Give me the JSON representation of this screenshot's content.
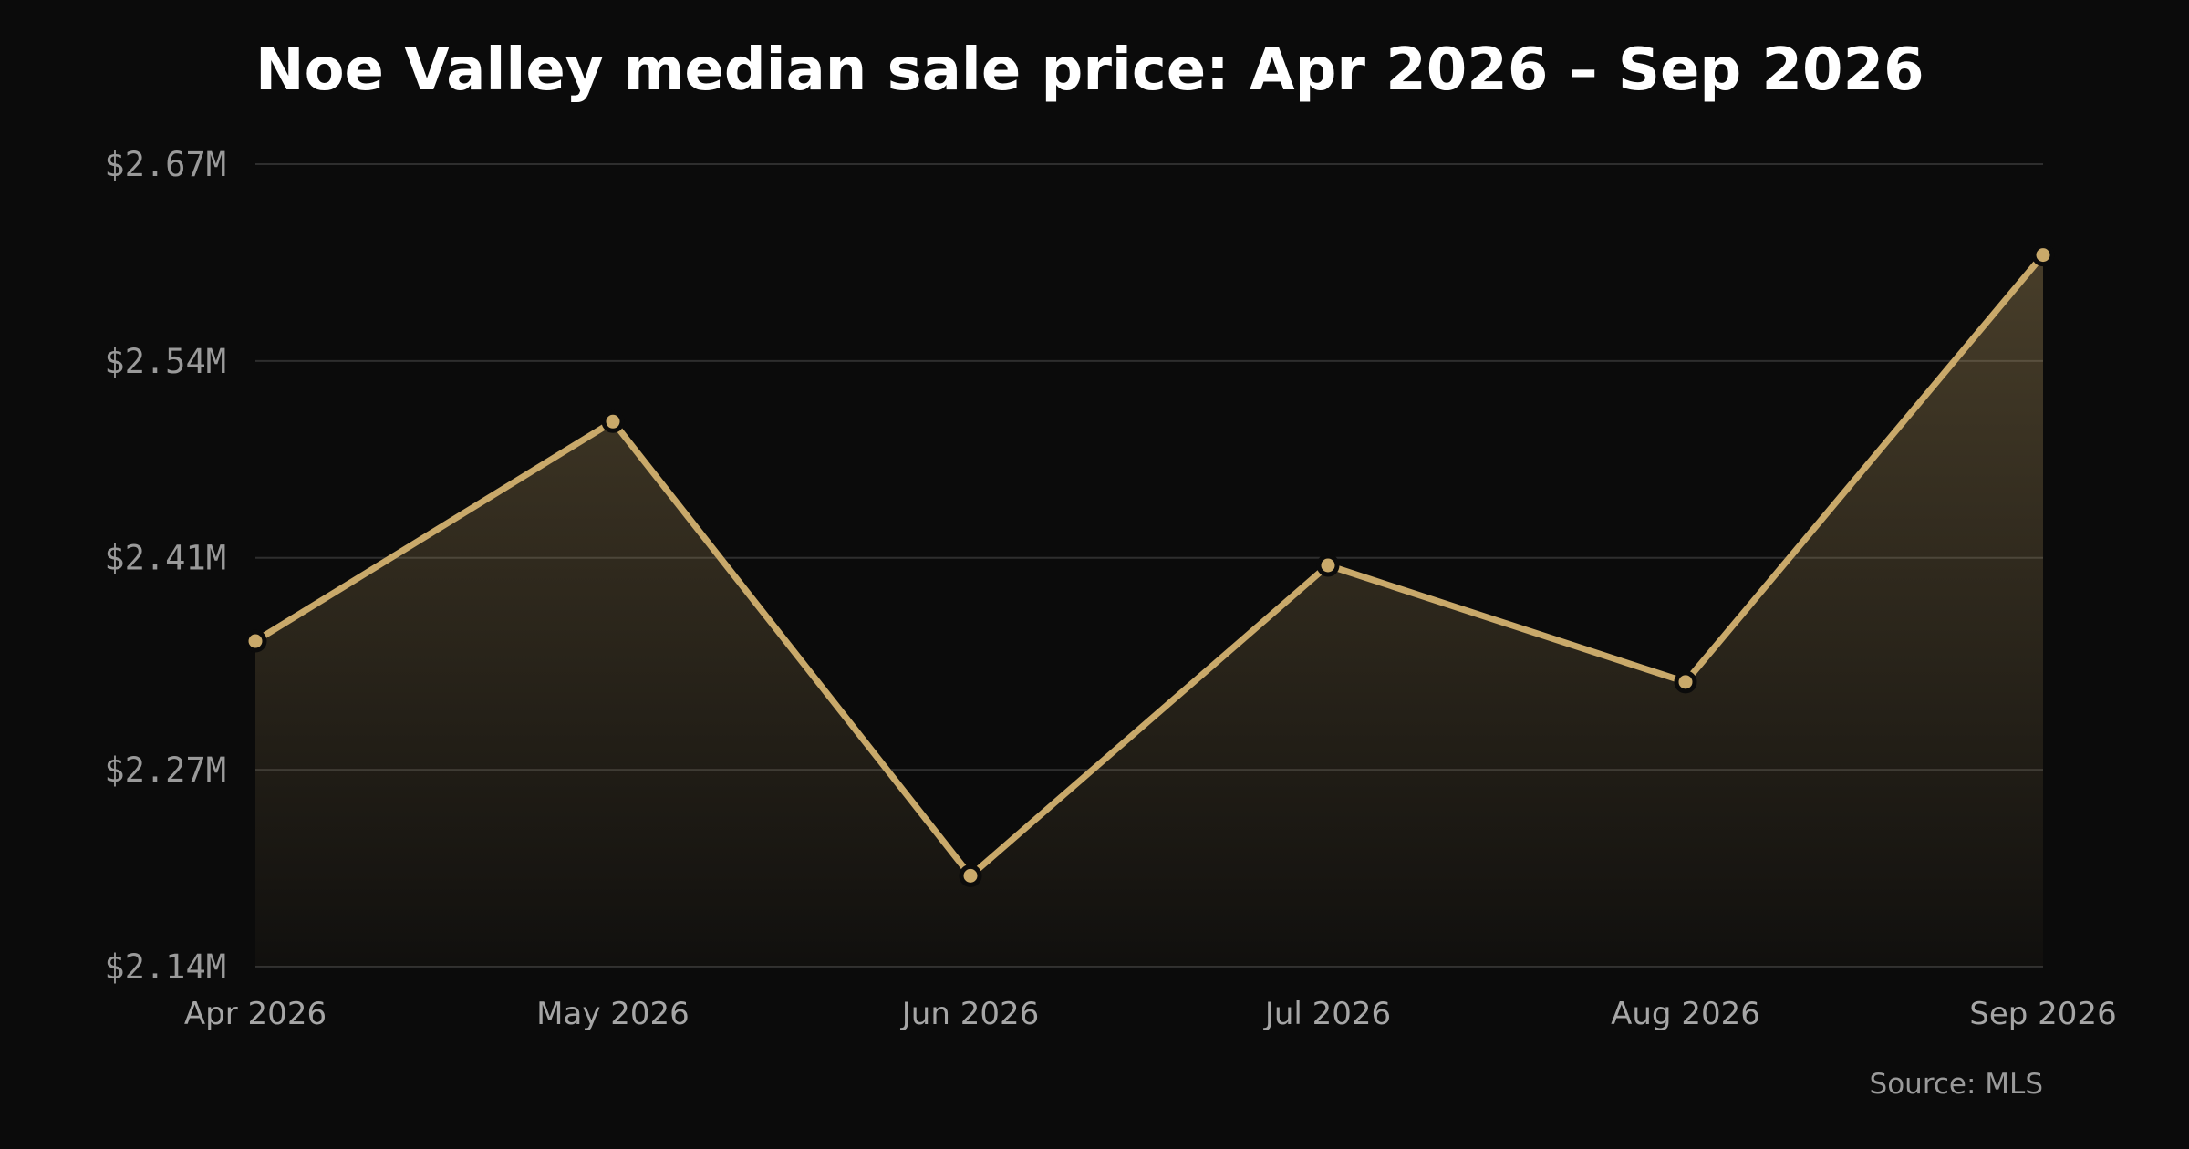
{
  "chart_data": {
    "type": "line",
    "title": "Noe Valley median sale price: Apr 2026 – Sep 2026",
    "categories": [
      "Apr 2026",
      "May 2026",
      "Jun 2026",
      "Jul 2026",
      "Aug 2026",
      "Sep 2026"
    ],
    "series": [
      {
        "values": [
          2.355,
          2.5,
          2.2,
          2.405,
          2.328,
          2.61
        ]
      }
    ],
    "value_unit": "$M",
    "ylim": [
      2.14,
      2.67
    ],
    "yticks": [
      2.67,
      2.54,
      2.41,
      2.27,
      2.14
    ],
    "ytick_labels": [
      "$2.67M",
      "$2.54M",
      "$2.41M",
      "$2.27M",
      "$2.14M"
    ],
    "grid": "horizontal",
    "area_fill": true,
    "source": "Source: MLS",
    "colors": {
      "line": "#c9a96a",
      "background": "#0b0b0b",
      "grid": "#2e2e2e"
    }
  }
}
